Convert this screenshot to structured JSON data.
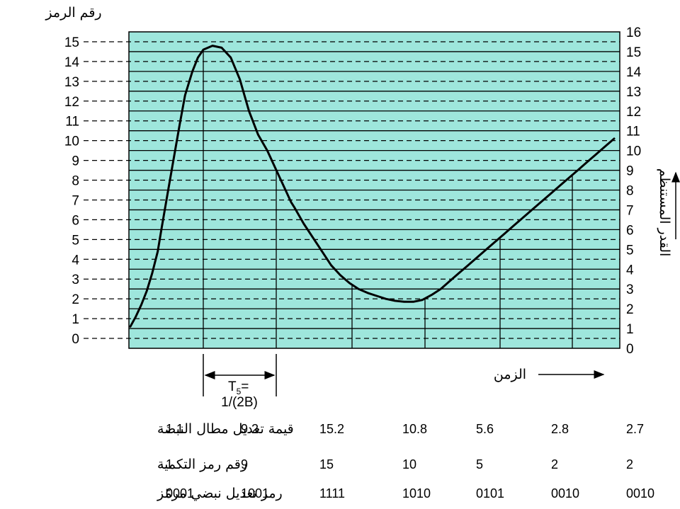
{
  "labels": {
    "left_axis_title": "رقم الرمز",
    "right_axis_title": "القدر المستنظم",
    "time_label": "الزمن",
    "interval_line1": "T",
    "interval_sub": "5",
    "interval_eq": "=",
    "interval_line2": "1/(2B)"
  },
  "chart_data": {
    "type": "line",
    "left_axis_ticks": [
      "0",
      "1",
      "2",
      "3",
      "4",
      "5",
      "6",
      "7",
      "8",
      "9",
      "10",
      "11",
      "12",
      "13",
      "14",
      "15"
    ],
    "right_axis_ticks": [
      "0",
      "1",
      "2",
      "3",
      "4",
      "5",
      "6",
      "7",
      "8",
      "9",
      "10",
      "11",
      "12",
      "13",
      "14",
      "15",
      "16"
    ],
    "right_ylim": [
      0,
      16
    ],
    "grid": true,
    "colors": {
      "plot_background": "#9EE6DC",
      "curve": "#000000"
    },
    "sample_values": [
      1.1,
      9.2,
      15.2,
      10.8,
      5.6,
      2.8,
      2.7
    ],
    "curve": {
      "x": [
        0,
        0.3,
        0.6,
        0.9,
        1.2,
        1.5,
        1.7,
        2.0,
        2.3,
        2.7,
        3.0,
        3.4,
        3.7,
        4.0,
        4.5,
        5.0,
        5.5,
        6.0,
        6.5,
        7.0,
        7.5,
        8.0,
        8.5,
        8.8,
        9.0,
        9.5,
        10.0,
        10.5,
        11.0,
        11.5,
        12.0,
        12.5,
        13.0,
        13.5,
        14.0,
        14.5,
        15.0,
        15.5,
        16.0,
        16.5,
        17.0,
        17.5,
        18.0,
        18.5,
        19.0,
        19.5,
        20.0,
        20.5,
        21.0,
        21.5,
        22.0,
        22.5,
        23.0,
        23.5,
        24.0,
        24.5,
        25.0,
        25.5,
        26.0,
        26.5
      ],
      "y": [
        1.1,
        1.6,
        2.2,
        2.9,
        3.8,
        4.9,
        6.0,
        7.6,
        9.2,
        11.3,
        12.8,
        14.0,
        14.7,
        15.1,
        15.3,
        15.2,
        14.7,
        13.6,
        12.0,
        10.8,
        10.0,
        9.0,
        8.0,
        7.4,
        7.1,
        6.3,
        5.6,
        4.9,
        4.2,
        3.7,
        3.3,
        3.0,
        2.8,
        2.65,
        2.5,
        2.4,
        2.35,
        2.35,
        2.45,
        2.7,
        3.0,
        3.4,
        3.8,
        4.2,
        4.6,
        5.0,
        5.4,
        5.8,
        6.2,
        6.6,
        7.0,
        7.4,
        7.8,
        8.2,
        8.6,
        9.0,
        9.4,
        9.8,
        10.2,
        10.6
      ]
    }
  },
  "table": {
    "rows": [
      {
        "label": "قيمة تعديل مطال النبضة",
        "values": [
          "1.1",
          "9.2",
          "15.2",
          "10.8",
          "5.6",
          "2.8",
          "2.7"
        ]
      },
      {
        "label": "رقم رمز التكمية",
        "values": [
          "1",
          "9",
          "15",
          "10",
          "5",
          "2",
          "2"
        ]
      },
      {
        "label": "رمز تعديل نبضي مرمّز",
        "values": [
          "0001",
          "1001",
          "1111",
          "1010",
          "0101",
          "0010",
          "0010"
        ]
      }
    ]
  }
}
